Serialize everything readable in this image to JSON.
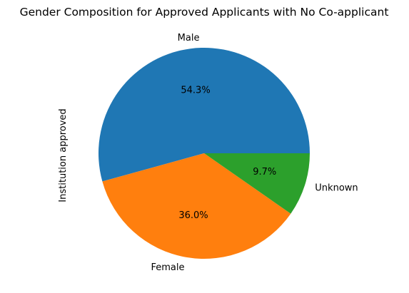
{
  "chart_data": {
    "type": "pie",
    "title": "Gender Composition for Approved Applicants with No Co-applicant",
    "ylabel": "Institution approved",
    "slices": [
      {
        "label": "Male",
        "value": 54.3,
        "pct_label": "54.3%",
        "color": "#1f77b4"
      },
      {
        "label": "Female",
        "value": 36.0,
        "pct_label": "36.0%",
        "color": "#ff7f0e"
      },
      {
        "label": "Unknown",
        "value": 9.7,
        "pct_label": "9.7%",
        "color": "#2ca02c"
      }
    ],
    "start_angle": 0,
    "direction": "counterclockwise"
  }
}
